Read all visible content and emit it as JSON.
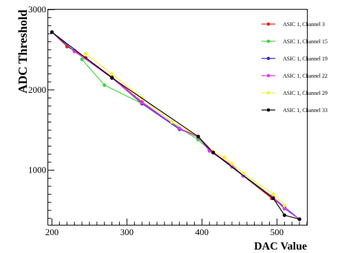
{
  "chart_data": {
    "type": "line",
    "xlabel": "DAC Value",
    "ylabel": "ADC Threshold",
    "xlim": [
      195,
      540
    ],
    "ylim": [
      320,
      3000
    ],
    "x_ticks": [
      200,
      300,
      400,
      500
    ],
    "y_ticks": [
      1000,
      2000,
      3000
    ],
    "legend_position": "top-right",
    "grid": false,
    "series": [
      {
        "name": "ASIC 1, Channel 3",
        "color": "#e8251c",
        "x": [
          200,
          220,
          230,
          245,
          280,
          320,
          370,
          395,
          410,
          415,
          440,
          455,
          493,
          510
        ],
        "y": [
          2720,
          2540,
          2490,
          2400,
          2160,
          1850,
          1520,
          1420,
          1250,
          1220,
          1060,
          930,
          650,
          540
        ]
      },
      {
        "name": "ASIC 1, Channel 15",
        "color": "#3cd73c",
        "x": [
          240,
          270,
          320,
          360,
          395,
          410,
          440,
          455,
          493
        ],
        "y": [
          2380,
          2060,
          1830,
          1590,
          1380,
          1250,
          1040,
          940,
          680
        ]
      },
      {
        "name": "ASIC 1, Channel 19",
        "color": "#2a2ae0",
        "x": [
          200,
          230,
          280,
          320,
          370,
          395,
          410,
          415,
          455,
          495,
          510,
          530
        ],
        "y": [
          2720,
          2480,
          2150,
          1830,
          1510,
          1420,
          1250,
          1220,
          930,
          660,
          540,
          390
        ]
      },
      {
        "name": "ASIC 1, Channel 22",
        "color": "#e637e6",
        "x": [
          230,
          280,
          320,
          370,
          395,
          410,
          440,
          455,
          495,
          510,
          530
        ],
        "y": [
          2480,
          2150,
          1840,
          1520,
          1410,
          1240,
          1050,
          930,
          660,
          520,
          390
        ]
      },
      {
        "name": "ASIC 1, Channel 29",
        "color": "#f2f23a",
        "x": [
          245,
          280,
          320,
          360,
          395,
          415,
          430,
          440,
          455,
          495,
          510
        ],
        "y": [
          2450,
          2200,
          1900,
          1600,
          1420,
          1230,
          1160,
          1080,
          960,
          700,
          560
        ]
      },
      {
        "name": "ASIC 1, Channel 33",
        "color": "#000000",
        "x": [
          200,
          280,
          395,
          415,
          495,
          510,
          530
        ],
        "y": [
          2720,
          2150,
          1420,
          1220,
          650,
          440,
          390
        ]
      }
    ]
  }
}
